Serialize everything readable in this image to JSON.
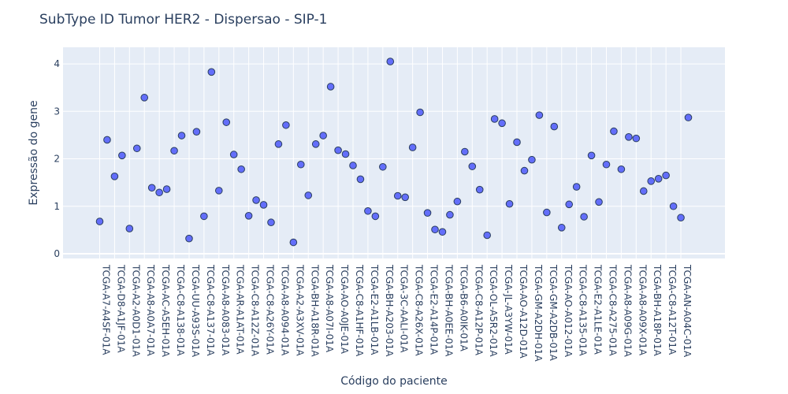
{
  "chart_data": {
    "type": "scatter",
    "title": "SubType ID Tumor HER2 - Dispersao - SIP-1",
    "xlabel": "Código do paciente",
    "ylabel": "Expressão do gene",
    "ylim": [
      -0.1,
      4.35
    ],
    "yticks": [
      0,
      1,
      2,
      3,
      4
    ],
    "grid": true,
    "colors": {
      "plot_bg": "#E5ECF6",
      "grid": "#ffffff",
      "marker": "#636EFA",
      "marker_edge": "#2a3f5f",
      "text": "#2a3f5f"
    },
    "x_tick_labels": [
      "TCGA-A7-A4SF-01A",
      "TCGA-D8-A1JF-01A",
      "TCGA-A2-A0D1-01A",
      "TCGA-A8-A0A7-01A",
      "TCGA-AC-A5EH-01A",
      "TCGA-C8-A138-01A",
      "TCGA-UU-A93S-01A",
      "TCGA-C8-A137-01A",
      "TCGA-A8-A083-01A",
      "TCGA-AR-A1AT-01A",
      "TCGA-C8-A12Z-01A",
      "TCGA-C8-A26Y-01A",
      "TCGA-A8-A094-01A",
      "TCGA-A2-A3XV-01A",
      "TCGA-BH-A18R-01A",
      "TCGA-A8-A07I-01A",
      "TCGA-AO-A0JE-01A",
      "TCGA-C8-A1HF-01A",
      "TCGA-E2-A1LB-01A",
      "TCGA-BH-A203-01A",
      "TCGA-3C-AALI-01A",
      "TCGA-C8-A26X-01A",
      "TCGA-E2-A14P-01A",
      "TCGA-BH-A0EE-01A",
      "TCGA-B6-A0IK-01A",
      "TCGA-C8-A12P-01A",
      "TCGA-OL-A5R2-01A",
      "TCGA-JL-A3YW-01A",
      "TCGA-AO-A12D-01A",
      "TCGA-GM-A2DH-01A",
      "TCGA-GM-A2DB-01A",
      "TCGA-AO-A012-01A",
      "TCGA-C8-A135-01A",
      "TCGA-E2-A1LE-01A",
      "TCGA-C8-A275-01A",
      "TCGA-A8-A09G-01A",
      "TCGA-A8-A09X-01A",
      "TCGA-BH-A18P-01A",
      "TCGA-C8-A12T-01A",
      "TCGA-AN-A04C-01A"
    ],
    "values": [
      0.68,
      2.4,
      1.63,
      2.07,
      0.53,
      2.22,
      3.29,
      1.39,
      1.29,
      1.36,
      2.17,
      2.49,
      0.32,
      2.57,
      0.79,
      3.83,
      1.33,
      2.77,
      2.09,
      1.78,
      0.8,
      1.13,
      1.03,
      0.66,
      2.31,
      2.71,
      0.24,
      1.88,
      1.23,
      2.31,
      2.49,
      3.52,
      2.18,
      2.1,
      1.86,
      1.57,
      0.9,
      0.79,
      1.83,
      4.05,
      1.22,
      1.19,
      2.24,
      2.98,
      0.86,
      0.51,
      0.46,
      0.82,
      1.1,
      2.15,
      1.84,
      1.35,
      0.39,
      2.84,
      2.75,
      1.05,
      2.35,
      1.75,
      1.98,
      2.92,
      0.87,
      2.68,
      0.55,
      1.04,
      1.41,
      0.78,
      2.07,
      1.09,
      1.88,
      2.58,
      1.78,
      2.46,
      2.43,
      1.32,
      1.53,
      1.58,
      1.65,
      1.0,
      0.76,
      2.87
    ]
  }
}
